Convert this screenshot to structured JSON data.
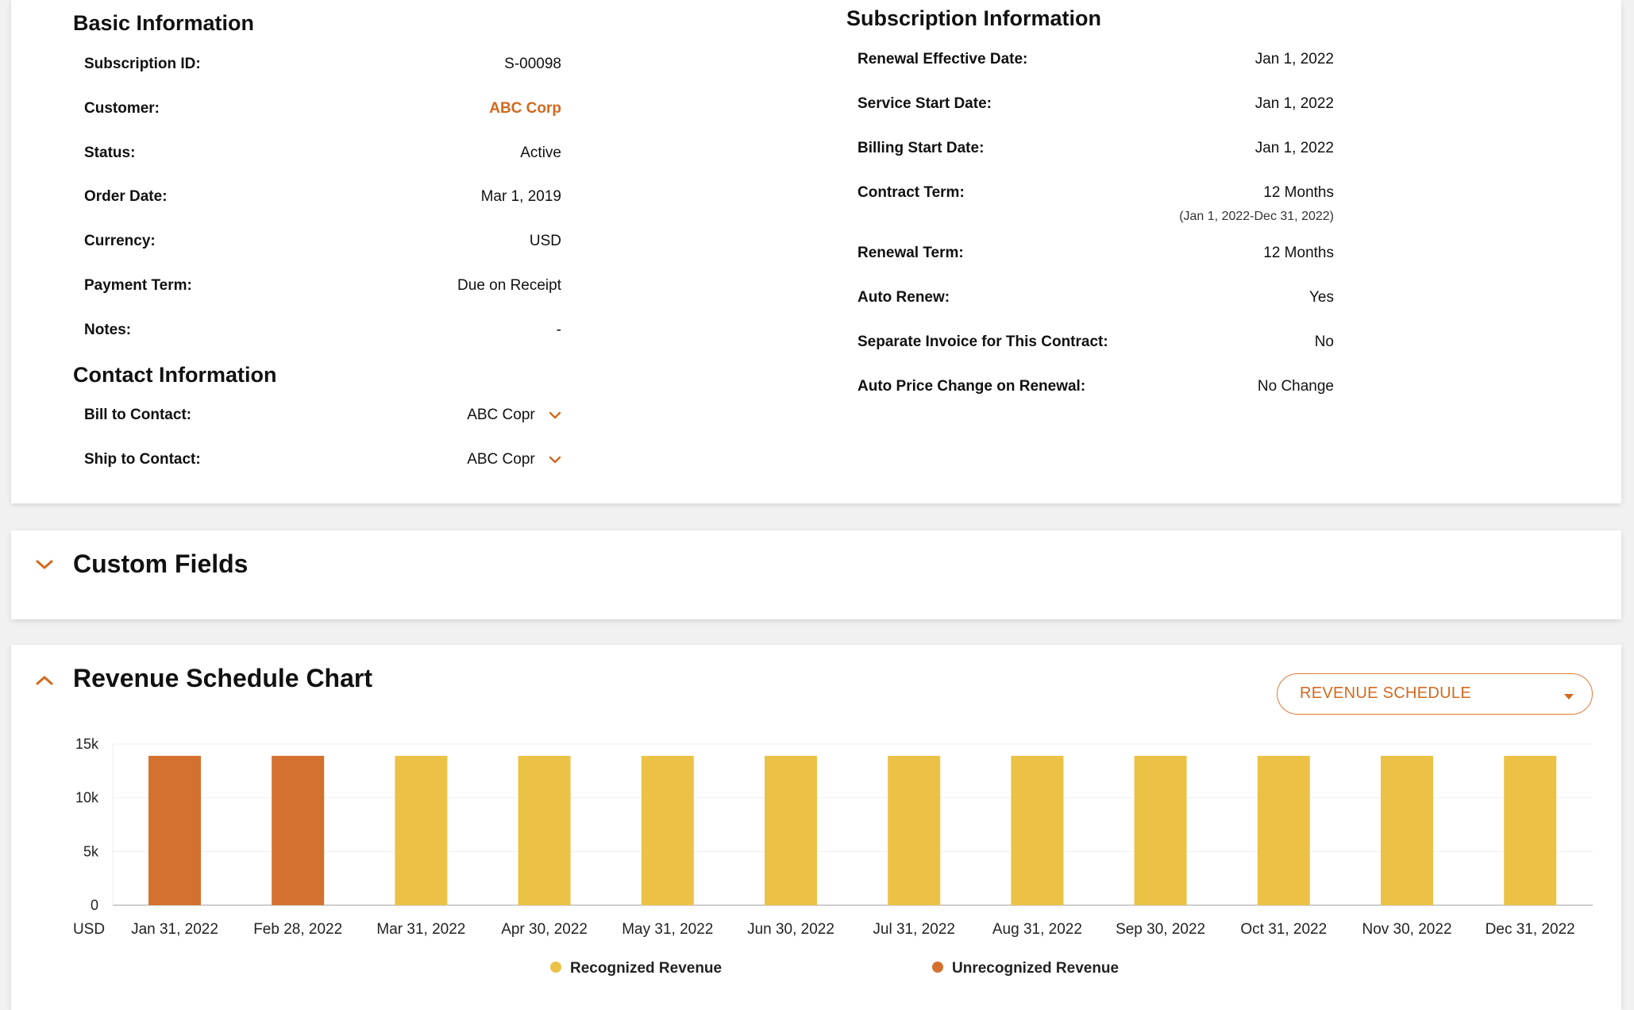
{
  "basic": {
    "title": "Basic Information",
    "rows": [
      {
        "label": "Subscription ID:",
        "value": "S-00098"
      },
      {
        "label": "Customer:",
        "value": "ABC Corp"
      },
      {
        "label": "Status:",
        "value": "Active"
      },
      {
        "label": "Order Date:",
        "value": "Mar 1, 2019"
      },
      {
        "label": "Currency:",
        "value": "USD"
      },
      {
        "label": "Payment Term:",
        "value": "Due on Receipt"
      },
      {
        "label": "Notes:",
        "value": "-"
      }
    ]
  },
  "contact": {
    "title": "Contact Information",
    "rows": [
      {
        "label": "Bill to Contact:",
        "value": "ABC Copr"
      },
      {
        "label": "Ship to Contact:",
        "value": "ABC Copr"
      }
    ]
  },
  "subscription": {
    "title": "Subscription Information",
    "rows": [
      {
        "label": "Renewal Effective Date:",
        "value": "Jan 1, 2022"
      },
      {
        "label": "Service Start Date:",
        "value": "Jan 1, 2022"
      },
      {
        "label": "Billing Start Date:",
        "value": "Jan 1, 2022"
      },
      {
        "label": "Contract Term:",
        "value": "12 Months",
        "sub": "(Jan 1, 2022-Dec 31, 2022)"
      },
      {
        "label": "Renewal Term:",
        "value": "12 Months"
      },
      {
        "label": "Auto Renew:",
        "value": "Yes"
      },
      {
        "label": "Separate Invoice for This Contract:",
        "value": "No"
      },
      {
        "label": "Auto Price Change on Renewal:",
        "value": "No Change"
      }
    ]
  },
  "custom_fields": {
    "title": "Custom Fields",
    "expanded": false
  },
  "revenue_chart": {
    "title": "Revenue Schedule Chart",
    "expanded": true,
    "dropdown_value": "REVENUE SCHEDULE"
  },
  "colors": {
    "accent": "#d2691e",
    "recognized": "#ecc246",
    "unrecognized": "#d4712f"
  },
  "icons": {
    "contact_chevron": "chevron-down-icon",
    "custom_toggle": "chevron-down-icon",
    "chart_toggle": "chevron-up-icon",
    "dropdown_caret": "caret-down-icon"
  },
  "chart_data": {
    "type": "bar",
    "categories": [
      "Jan 31, 2022",
      "Feb 28, 2022",
      "Mar 31, 2022",
      "Apr 30, 2022",
      "May 31, 2022",
      "Jun 30, 2022",
      "Jul 31, 2022",
      "Aug 31, 2022",
      "Sep 30, 2022",
      "Oct 31, 2022",
      "Nov 30, 2022",
      "Dec 31, 2022"
    ],
    "series": [
      {
        "name": "Recognized Revenue",
        "values": [
          0,
          0,
          13900,
          13900,
          13900,
          13900,
          13900,
          13900,
          13900,
          13900,
          13900,
          13900
        ]
      },
      {
        "name": "Unrecognized Revenue",
        "values": [
          13900,
          13900,
          0,
          0,
          0,
          0,
          0,
          0,
          0,
          0,
          0,
          0
        ]
      }
    ],
    "ylabel": "USD",
    "yticks": [
      "0",
      "5k",
      "10k",
      "15k"
    ],
    "ylim": [
      0,
      15000
    ],
    "legend": "bottom",
    "grid": true
  }
}
